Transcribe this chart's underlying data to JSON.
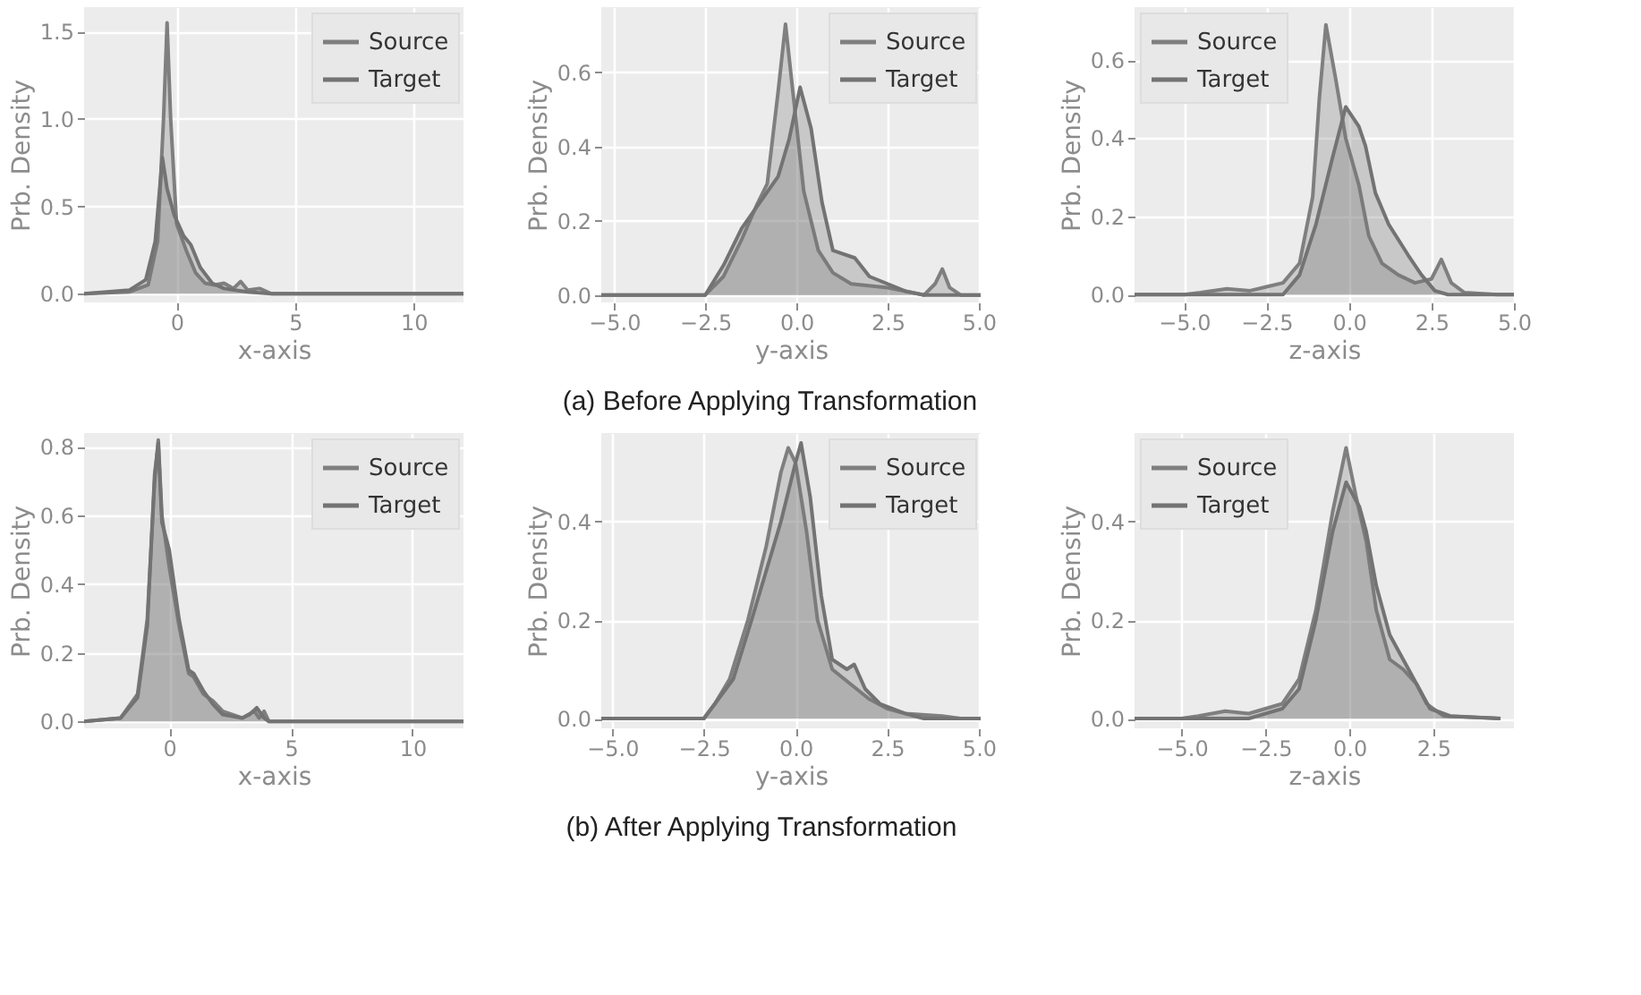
{
  "chart_data": [
    {
      "type": "area",
      "xlabel": "x-axis",
      "ylabel": "Prb. Density",
      "xlim": [
        -3.9,
        12.1
      ],
      "ylim": [
        -0.05,
        1.64
      ],
      "xticks": [
        0,
        5,
        10
      ],
      "yticks": [
        {
          "value": 0,
          "label": "0.0"
        },
        {
          "value": 0.5,
          "label": "0.5"
        },
        {
          "value": 1,
          "label": "1.0"
        },
        {
          "value": 1.5,
          "label": "1.5"
        }
      ],
      "grid": true,
      "legend": "top right",
      "series": [
        {
          "name": "Source",
          "color": "#7f7f7f",
          "x": [
            -3.9,
            -2,
            -1.2,
            -0.8,
            -0.55,
            -0.4,
            -0.25,
            0,
            0.4,
            0.8,
            1.2,
            1.6,
            2.0,
            2.4,
            2.7,
            3.0,
            3.5,
            4,
            12.1
          ],
          "values": [
            0,
            0.01,
            0.05,
            0.3,
            1.0,
            1.55,
            1.0,
            0.4,
            0.25,
            0.12,
            0.06,
            0.05,
            0.06,
            0.03,
            0.07,
            0.02,
            0.03,
            0,
            0
          ]
        },
        {
          "name": "Target",
          "color": "#737373",
          "x": [
            -3.9,
            -2,
            -1.3,
            -0.9,
            -0.6,
            -0.4,
            -0.1,
            0.3,
            0.6,
            1.0,
            1.5,
            2.0,
            3.0,
            4,
            12.1
          ],
          "values": [
            0,
            0.02,
            0.08,
            0.3,
            0.78,
            0.6,
            0.45,
            0.33,
            0.28,
            0.15,
            0.06,
            0.03,
            0.01,
            0,
            0
          ]
        }
      ]
    },
    {
      "type": "area",
      "xlabel": "y-axis",
      "ylabel": "Prb. Density",
      "xlim": [
        -5.35,
        5.05
      ],
      "ylim": [
        -0.02,
        0.776
      ],
      "xticks": [
        {
          "value": -5,
          "label": "−5.0"
        },
        {
          "value": -2.5,
          "label": "−2.5"
        },
        {
          "value": 0,
          "label": "0.0"
        },
        {
          "value": 2.5,
          "label": "2.5"
        },
        {
          "value": 5,
          "label": "5.0"
        }
      ],
      "yticks": [
        {
          "value": 0,
          "label": "0.0"
        },
        {
          "value": 0.2,
          "label": "0.2"
        },
        {
          "value": 0.4,
          "label": "0.4"
        },
        {
          "value": 0.6,
          "label": "0.6"
        }
      ],
      "grid": true,
      "legend": "top right",
      "series": [
        {
          "name": "Source",
          "color": "#7f7f7f",
          "x": [
            -5.35,
            -2.5,
            -2,
            -1.5,
            -1.1,
            -0.8,
            -0.5,
            -0.3,
            -0.1,
            0.2,
            0.6,
            1.0,
            1.5,
            2.5,
            3.5,
            3.8,
            4.0,
            4.2,
            4.5,
            5.05
          ],
          "values": [
            0,
            0,
            0.05,
            0.15,
            0.24,
            0.3,
            0.55,
            0.73,
            0.55,
            0.28,
            0.12,
            0.06,
            0.03,
            0.02,
            0,
            0.03,
            0.07,
            0.02,
            0,
            0
          ]
        },
        {
          "name": "Target",
          "color": "#737373",
          "x": [
            -5.35,
            -2.5,
            -2,
            -1.5,
            -1.0,
            -0.5,
            -0.2,
            0.1,
            0.4,
            0.7,
            1.0,
            1.6,
            2.0,
            2.5,
            3,
            3.5,
            5.05
          ],
          "values": [
            0,
            0,
            0.08,
            0.18,
            0.25,
            0.32,
            0.42,
            0.56,
            0.45,
            0.25,
            0.12,
            0.1,
            0.05,
            0.03,
            0.01,
            0,
            0
          ]
        }
      ]
    },
    {
      "type": "area",
      "xlabel": "z-axis",
      "ylabel": "Prb. Density",
      "xlim": [
        -6.5,
        5.0
      ],
      "ylim": [
        -0.02,
        0.735
      ],
      "xticks": [
        {
          "value": -5,
          "label": "−5.0"
        },
        {
          "value": -2.5,
          "label": "−2.5"
        },
        {
          "value": 0,
          "label": "0.0"
        },
        {
          "value": 2.5,
          "label": "2.5"
        },
        {
          "value": 5,
          "label": "5.0"
        }
      ],
      "yticks": [
        {
          "value": 0,
          "label": "0.0"
        },
        {
          "value": 0.2,
          "label": "0.2"
        },
        {
          "value": 0.4,
          "label": "0.4"
        },
        {
          "value": 0.6,
          "label": "0.6"
        }
      ],
      "grid": true,
      "legend": "top left",
      "series": [
        {
          "name": "Source",
          "color": "#7f7f7f",
          "x": [
            -6.5,
            -5,
            -4.5,
            -3.7,
            -3,
            -2.5,
            -2,
            -1.5,
            -1.1,
            -0.9,
            -0.7,
            -0.4,
            -0.1,
            0.3,
            0.6,
            1.0,
            1.5,
            2.0,
            2.5,
            2.8,
            3.1,
            3.5,
            4.5,
            5.0
          ],
          "values": [
            0,
            0,
            0.005,
            0.015,
            0.01,
            0.02,
            0.03,
            0.08,
            0.25,
            0.5,
            0.69,
            0.55,
            0.4,
            0.28,
            0.15,
            0.08,
            0.05,
            0.03,
            0.04,
            0.09,
            0.03,
            0.005,
            0,
            0
          ]
        },
        {
          "name": "Target",
          "color": "#737373",
          "x": [
            -6.5,
            -2,
            -1.5,
            -1.0,
            -0.5,
            -0.1,
            0.3,
            0.5,
            0.8,
            1.2,
            1.8,
            2.2,
            2.6,
            3,
            5.0
          ],
          "values": [
            0,
            0,
            0.05,
            0.18,
            0.35,
            0.48,
            0.43,
            0.38,
            0.26,
            0.18,
            0.1,
            0.05,
            0.01,
            0,
            0
          ]
        }
      ]
    },
    {
      "type": "area",
      "xlabel": "x-axis",
      "ylabel": "Prb. Density",
      "xlim": [
        -3.5,
        12.1
      ],
      "ylim": [
        -0.02,
        0.84
      ],
      "xticks": [
        0,
        5,
        10
      ],
      "yticks": [
        {
          "value": 0,
          "label": "0.0"
        },
        {
          "value": 0.2,
          "label": "0.2"
        },
        {
          "value": 0.4,
          "label": "0.4"
        },
        {
          "value": 0.6,
          "label": "0.6"
        },
        {
          "value": 0.8,
          "label": "0.8"
        }
      ],
      "grid": true,
      "legend": "top right",
      "series": [
        {
          "name": "Source",
          "color": "#7f7f7f",
          "x": [
            -3.5,
            -2,
            -1.3,
            -0.9,
            -0.6,
            -0.45,
            -0.3,
            0,
            0.4,
            0.8,
            1.0,
            1.4,
            1.8,
            2.2,
            3.0,
            3.5,
            3.7,
            3.9,
            4.1,
            12.1
          ],
          "values": [
            0,
            0.01,
            0.08,
            0.3,
            0.7,
            0.82,
            0.6,
            0.45,
            0.28,
            0.14,
            0.13,
            0.08,
            0.06,
            0.03,
            0.01,
            0.03,
            0.01,
            0.03,
            0,
            0
          ]
        },
        {
          "name": "Target",
          "color": "#737373",
          "x": [
            -3.5,
            -2,
            -1.3,
            -0.9,
            -0.6,
            -0.45,
            -0.3,
            0,
            0.4,
            0.8,
            1.0,
            1.4,
            1.8,
            2.2,
            3.0,
            3.3,
            3.6,
            3.9,
            4.1,
            12.1
          ],
          "values": [
            0,
            0.01,
            0.07,
            0.28,
            0.72,
            0.81,
            0.58,
            0.5,
            0.3,
            0.15,
            0.14,
            0.09,
            0.05,
            0.02,
            0.01,
            0.02,
            0.04,
            0.01,
            0,
            0
          ]
        }
      ]
    },
    {
      "type": "area",
      "xlabel": "y-axis",
      "ylabel": "Prb. Density",
      "xlim": [
        -5.3,
        5.05
      ],
      "ylim": [
        -0.02,
        0.58
      ],
      "xticks": [
        {
          "value": -5,
          "label": "−5.0"
        },
        {
          "value": -2.5,
          "label": "−2.5"
        },
        {
          "value": 0,
          "label": "0.0"
        },
        {
          "value": 2.5,
          "label": "2.5"
        },
        {
          "value": 5,
          "label": "5.0"
        }
      ],
      "yticks": [
        {
          "value": 0,
          "label": "0.0"
        },
        {
          "value": 0.2,
          "label": "0.2"
        },
        {
          "value": 0.4,
          "label": "0.4"
        }
      ],
      "grid": true,
      "legend": "top right",
      "annotations": [
        "(a) Before Applying Transformation",
        "(b) After Applying Transformation"
      ],
      "series": [
        {
          "name": "Source",
          "color": "#7f7f7f",
          "x": [
            -5.3,
            -2.5,
            -2.2,
            -1.8,
            -1.3,
            -0.8,
            -0.4,
            -0.2,
            0,
            0.3,
            0.6,
            1,
            1.5,
            2,
            2.5,
            3,
            4,
            4.5,
            5.05
          ],
          "values": [
            0,
            0,
            0.03,
            0.08,
            0.2,
            0.35,
            0.5,
            0.55,
            0.52,
            0.38,
            0.2,
            0.1,
            0.07,
            0.04,
            0.02,
            0.01,
            0.005,
            0,
            0
          ]
        },
        {
          "name": "Target",
          "color": "#737373",
          "x": [
            -5.3,
            -2.5,
            -2.1,
            -1.7,
            -1.2,
            -0.8,
            -0.4,
            0,
            0.15,
            0.4,
            0.7,
            1.0,
            1.4,
            1.6,
            1.9,
            2.3,
            3,
            3.5,
            5.05
          ],
          "values": [
            0,
            0,
            0.04,
            0.08,
            0.2,
            0.3,
            0.4,
            0.52,
            0.56,
            0.45,
            0.25,
            0.12,
            0.1,
            0.11,
            0.06,
            0.03,
            0.01,
            0,
            0
          ]
        }
      ]
    },
    {
      "type": "area",
      "xlabel": "z-axis",
      "ylabel": "Prb. Density",
      "xlim": [
        -6.4,
        4.9
      ],
      "ylim": [
        -0.02,
        0.58
      ],
      "xticks": [
        {
          "value": -5,
          "label": "−5.0"
        },
        {
          "value": -2.5,
          "label": "−2.5"
        },
        {
          "value": 0,
          "label": "0.0"
        },
        {
          "value": 2.5,
          "label": "2.5"
        }
      ],
      "yticks": [
        {
          "value": 0,
          "label": "0.0"
        },
        {
          "value": 0.2,
          "label": "0.2"
        },
        {
          "value": 0.4,
          "label": "0.4"
        }
      ],
      "grid": true,
      "legend": "top left",
      "series": [
        {
          "name": "Source",
          "color": "#7f7f7f",
          "x": [
            -6.4,
            -5,
            -4.5,
            -3.7,
            -3,
            -2.5,
            -2,
            -1.5,
            -1,
            -0.5,
            -0.1,
            0.2,
            0.5,
            0.8,
            1.2,
            1.6,
            2.0,
            2.3,
            2.8,
            4.5
          ],
          "values": [
            0,
            0,
            0.005,
            0.015,
            0.01,
            0.02,
            0.03,
            0.08,
            0.22,
            0.42,
            0.55,
            0.45,
            0.36,
            0.22,
            0.12,
            0.1,
            0.07,
            0.03,
            0.005,
            0
          ]
        },
        {
          "name": "Target",
          "color": "#737373",
          "x": [
            -6.4,
            -3,
            -2,
            -1.5,
            -1,
            -0.5,
            -0.1,
            0.3,
            0.5,
            0.8,
            1.2,
            1.6,
            2.0,
            2.4,
            3,
            4.5
          ],
          "values": [
            0,
            0,
            0.02,
            0.06,
            0.2,
            0.38,
            0.48,
            0.43,
            0.38,
            0.27,
            0.17,
            0.12,
            0.07,
            0.02,
            0.005,
            0
          ]
        }
      ]
    }
  ]
}
